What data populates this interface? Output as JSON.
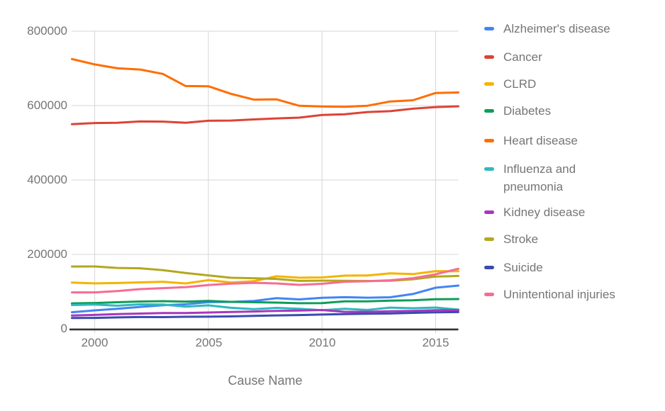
{
  "chart_data": {
    "type": "line",
    "x_label": "Cause Name",
    "x": [
      1999,
      2000,
      2001,
      2002,
      2003,
      2004,
      2005,
      2006,
      2007,
      2008,
      2009,
      2010,
      2011,
      2012,
      2013,
      2014,
      2015,
      2016
    ],
    "xlim": [
      1999,
      2016
    ],
    "ylim": [
      0,
      800000
    ],
    "x_tick_years": [
      2000,
      2005,
      2010,
      2015
    ],
    "x_tick_labels": [
      "2000",
      "2005",
      "2010",
      "2015"
    ],
    "y_tick_values": [
      0,
      200000,
      400000,
      600000,
      800000
    ],
    "y_tick_labels": [
      "0",
      "200000",
      "400000",
      "600000",
      "800000"
    ],
    "grid": true,
    "legend_position": "right",
    "colors": {
      "grid": "#D6D6D6",
      "axis": "#333333",
      "text": "#757575"
    },
    "series": [
      {
        "name": "Alzheimer's disease",
        "color": "#4285F4",
        "values": [
          44536,
          49558,
          53852,
          58866,
          63457,
          65965,
          71599,
          72432,
          74632,
          82435,
          79003,
          83494,
          84974,
          83637,
          84767,
          93541,
          110561,
          116103
        ]
      },
      {
        "name": "Cancer",
        "color": "#DB4437",
        "values": [
          549838,
          553091,
          553768,
          557271,
          556902,
          553888,
          559312,
          559888,
          562875,
          565469,
          567628,
          574743,
          576691,
          582623,
          584881,
          591699,
          595930,
          598038
        ]
      },
      {
        "name": "CLRD",
        "color": "#F4B400",
        "values": [
          124181,
          122009,
          123013,
          124816,
          126382,
          121987,
          130933,
          124583,
          127924,
          141090,
          137353,
          138080,
          142943,
          143489,
          149205,
          147101,
          155041,
          154596
        ]
      },
      {
        "name": "Diabetes",
        "color": "#0F9D58",
        "values": [
          68399,
          69301,
          71372,
          73249,
          74219,
          73138,
          75119,
          72449,
          71382,
          70553,
          68705,
          69071,
          73831,
          73932,
          75578,
          76488,
          79535,
          80058
        ]
      },
      {
        "name": "Heart disease",
        "color": "#FF6D01",
        "values": [
          725192,
          710760,
          700142,
          696947,
          685089,
          652486,
          652091,
          631636,
          616067,
          616828,
          599413,
          597689,
          596577,
          599711,
          611105,
          614348,
          633842,
          635260
        ]
      },
      {
        "name": "Influenza and pneumonia",
        "color": "#30B8BE",
        "values": [
          63730,
          65313,
          62034,
          65681,
          65163,
          59664,
          63001,
          56326,
          52717,
          56284,
          53692,
          50097,
          53826,
          50636,
          56979,
          55227,
          57062,
          51537
        ]
      },
      {
        "name": "Kidney disease",
        "color": "#A837BE",
        "values": [
          35525,
          37251,
          39480,
          40974,
          42453,
          42480,
          43901,
          45344,
          46448,
          48237,
          48935,
          50476,
          45591,
          45622,
          47112,
          48146,
          49959,
          50046
        ]
      },
      {
        "name": "Stroke",
        "color": "#B2A81E",
        "values": [
          167366,
          167661,
          163538,
          162672,
          157689,
          150074,
          143579,
          137119,
          135952,
          134148,
          128842,
          129476,
          128932,
          128546,
          128978,
          133103,
          140323,
          142142
        ]
      },
      {
        "name": "Suicide",
        "color": "#3A4CAE",
        "values": [
          29199,
          29350,
          30622,
          31655,
          31484,
          32439,
          32637,
          33300,
          34598,
          36035,
          36909,
          38364,
          39518,
          40600,
          41149,
          42826,
          44193,
          44965
        ]
      },
      {
        "name": "Unintentional injuries",
        "color": "#F76C92",
        "values": [
          97860,
          97900,
          101537,
          106742,
          109277,
          112012,
          117809,
          121599,
          123706,
          121902,
          118021,
          120859,
          126438,
          127792,
          130557,
          135928,
          146571,
          161374
        ]
      }
    ]
  }
}
